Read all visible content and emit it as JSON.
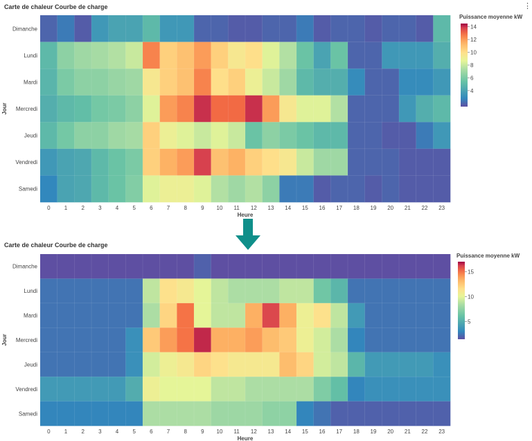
{
  "charts": [
    {
      "title": "Carte de chaleur Courbe de charge",
      "menu_icon": "vertical-dots-icon",
      "chart_data": {
        "type": "heatmap",
        "xlabel": "Heure",
        "ylabel": "Jour",
        "x": [
          "0",
          "1",
          "2",
          "3",
          "4",
          "5",
          "6",
          "7",
          "8",
          "9",
          "10",
          "11",
          "12",
          "13",
          "14",
          "15",
          "16",
          "17",
          "18",
          "19",
          "20",
          "21",
          "22",
          "23"
        ],
        "y": [
          "Dimanche",
          "Lundi",
          "Mardi",
          "Mercredi",
          "Jeudi",
          "Vendredi",
          "Samedi"
        ],
        "values": [
          [
            2.0,
            2.5,
            1.8,
            3.5,
            4.0,
            4.0,
            5.0,
            3.5,
            3.5,
            2.0,
            2.0,
            1.8,
            1.8,
            2.0,
            2.0,
            2.5,
            1.8,
            2.0,
            2.0,
            1.8,
            2.0,
            2.0,
            1.8,
            5.0
          ],
          [
            5.0,
            6.5,
            7.0,
            7.2,
            7.5,
            8.0,
            12.5,
            10.5,
            11.0,
            12.0,
            10.5,
            9.5,
            10.0,
            8.5,
            7.5,
            5.5,
            4.0,
            5.5,
            2.0,
            2.0,
            3.5,
            3.5,
            3.5,
            4.5
          ],
          [
            4.8,
            6.0,
            6.5,
            6.5,
            6.8,
            7.0,
            9.5,
            10.5,
            11.0,
            12.5,
            10.0,
            10.5,
            9.0,
            8.0,
            7.0,
            5.0,
            4.5,
            4.5,
            3.0,
            2.0,
            2.0,
            3.0,
            3.0,
            3.5
          ],
          [
            4.5,
            5.0,
            5.2,
            5.8,
            6.0,
            6.5,
            8.5,
            12.0,
            12.5,
            14.0,
            13.0,
            13.0,
            14.0,
            12.0,
            9.5,
            8.5,
            8.5,
            7.5,
            2.0,
            2.0,
            2.0,
            3.5,
            4.5,
            5.0
          ],
          [
            5.0,
            5.8,
            6.5,
            6.5,
            7.0,
            7.2,
            10.5,
            9.0,
            8.5,
            8.0,
            8.5,
            8.0,
            5.5,
            6.5,
            6.0,
            5.5,
            5.0,
            5.0,
            2.0,
            2.0,
            1.8,
            1.8,
            2.5,
            3.5
          ],
          [
            3.5,
            4.0,
            4.2,
            5.0,
            5.5,
            6.0,
            10.5,
            11.5,
            12.0,
            13.8,
            11.0,
            11.5,
            10.5,
            10.0,
            9.5,
            8.0,
            7.0,
            7.0,
            2.0,
            2.0,
            2.0,
            1.8,
            1.8,
            1.8
          ],
          [
            2.8,
            4.0,
            4.2,
            5.0,
            5.5,
            6.2,
            8.5,
            9.0,
            9.0,
            8.5,
            7.5,
            7.0,
            7.5,
            6.5,
            2.5,
            2.5,
            1.8,
            2.0,
            2.0,
            1.8,
            2.0,
            1.8,
            1.8,
            1.8
          ]
        ],
        "colorbar": {
          "title": "Puissance moyenne kW",
          "min": 1.5,
          "max": 14.5,
          "ticks": [
            4,
            6,
            8,
            10,
            12,
            14
          ]
        },
        "colorscale": "Spectral"
      }
    },
    {
      "title": "Carte de chaleur Courbe de charge",
      "menu_icon": "",
      "chart_data": {
        "type": "heatmap",
        "xlabel": "Heure",
        "ylabel": "Jour",
        "x": [
          "0",
          "1",
          "2",
          "3",
          "4",
          "5",
          "6",
          "7",
          "8",
          "9",
          "10",
          "11",
          "12",
          "13",
          "14",
          "15",
          "16",
          "17",
          "18",
          "19",
          "20",
          "21",
          "22",
          "23"
        ],
        "y": [
          "Dimanche",
          "Lundi",
          "Mardi",
          "Mercredi",
          "Jeudi",
          "Vendredi",
          "Samedi"
        ],
        "values": [
          [
            1.5,
            1.5,
            1.5,
            1.5,
            1.5,
            1.5,
            1.5,
            1.5,
            1.5,
            2.0,
            1.5,
            1.5,
            1.5,
            1.5,
            1.5,
            1.5,
            1.5,
            1.5,
            1.5,
            1.5,
            1.5,
            1.5,
            1.5,
            1.5
          ],
          [
            2.5,
            2.5,
            2.5,
            2.5,
            2.5,
            2.5,
            9.0,
            11.5,
            11.0,
            10.0,
            9.0,
            8.5,
            8.5,
            8.5,
            9.0,
            9.0,
            6.5,
            5.5,
            2.5,
            2.5,
            2.5,
            2.5,
            2.5,
            2.5
          ],
          [
            2.5,
            2.5,
            2.5,
            2.5,
            2.5,
            2.5,
            8.5,
            12.0,
            15.0,
            10.0,
            9.0,
            9.0,
            13.5,
            16.0,
            13.5,
            10.5,
            11.5,
            9.0,
            4.0,
            2.5,
            2.5,
            2.5,
            2.5,
            2.5
          ],
          [
            2.5,
            2.5,
            2.5,
            2.5,
            2.5,
            3.5,
            12.5,
            14.0,
            15.0,
            16.5,
            13.5,
            13.5,
            14.0,
            13.0,
            12.5,
            10.5,
            9.5,
            8.5,
            3.0,
            2.5,
            2.5,
            2.5,
            2.5,
            2.5
          ],
          [
            2.5,
            2.5,
            2.5,
            2.5,
            2.5,
            3.5,
            9.5,
            10.5,
            11.0,
            12.0,
            11.5,
            11.0,
            11.0,
            11.0,
            13.0,
            12.0,
            9.5,
            9.0,
            5.5,
            4.0,
            4.0,
            4.0,
            4.0,
            3.5
          ],
          [
            4.0,
            4.0,
            4.0,
            4.0,
            4.0,
            5.0,
            10.5,
            10.0,
            10.0,
            10.0,
            9.0,
            9.0,
            8.5,
            8.5,
            8.5,
            8.5,
            7.0,
            6.0,
            3.0,
            3.5,
            3.5,
            3.5,
            3.5,
            3.5
          ],
          [
            3.0,
            3.0,
            3.0,
            3.0,
            3.0,
            3.0,
            8.5,
            8.5,
            8.5,
            8.5,
            8.0,
            8.0,
            8.0,
            7.5,
            7.5,
            3.0,
            2.5,
            2.0,
            2.0,
            2.0,
            2.0,
            2.0,
            2.0,
            2.0
          ]
        ],
        "colorbar": {
          "title": "Puissance moyenne kW",
          "min": 1.5,
          "max": 17,
          "ticks": [
            5,
            10,
            15
          ]
        },
        "colorscale": "Spectral"
      }
    }
  ],
  "arrow": {
    "color": "#0f8f8a",
    "icon": "down-arrow-icon"
  }
}
